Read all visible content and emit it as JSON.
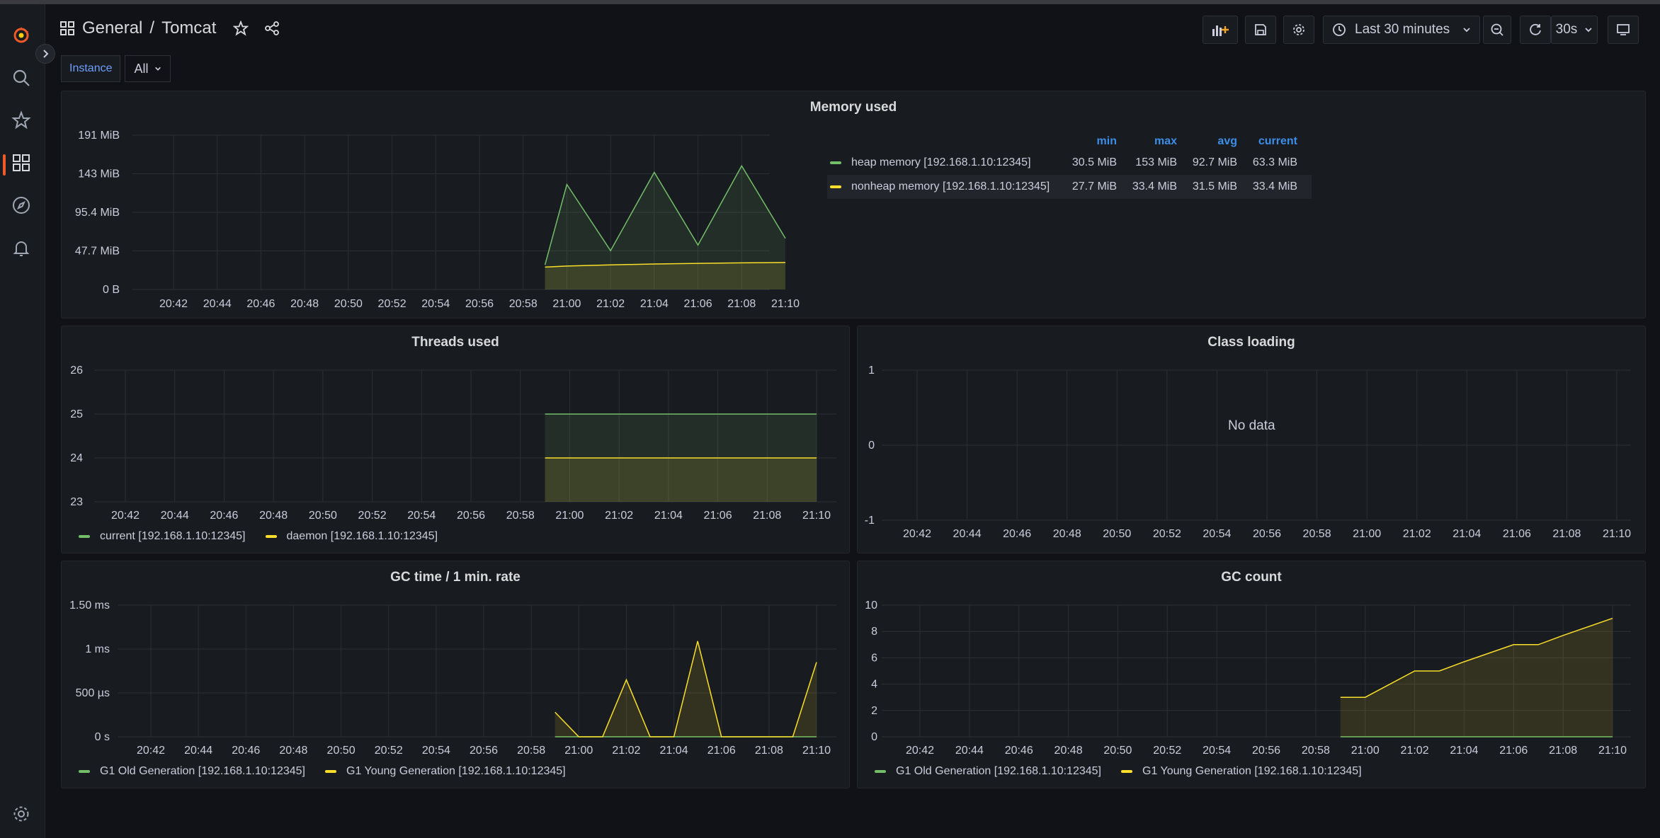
{
  "breadcrumb": {
    "folder": "General",
    "separator": "/",
    "dashboard": "Tomcat"
  },
  "toolbar": {
    "time_range": "Last 30 minutes",
    "refresh_interval": "30s"
  },
  "variables": {
    "instance_label": "Instance",
    "instance_value": "All"
  },
  "colors": {
    "green": "#73bf69",
    "yellow": "#fade2a",
    "brand": "#f05a28",
    "legend_header": "#3d8ee8"
  },
  "x_ticks": [
    "20:42",
    "20:44",
    "20:46",
    "20:48",
    "20:50",
    "20:52",
    "20:54",
    "20:56",
    "20:58",
    "21:00",
    "21:02",
    "21:04",
    "21:06",
    "21:08",
    "21:10"
  ],
  "panels": {
    "memory": {
      "title": "Memory used",
      "legend_headers": [
        "min",
        "max",
        "avg",
        "current"
      ],
      "legend_rows": [
        {
          "name": "heap memory [192.168.1.10:12345]",
          "min": "30.5 MiB",
          "max": "153 MiB",
          "avg": "92.7 MiB",
          "current": "63.3 MiB"
        },
        {
          "name": "nonheap memory [192.168.1.10:12345]",
          "min": "27.7 MiB",
          "max": "33.4 MiB",
          "avg": "31.5 MiB",
          "current": "33.4 MiB"
        }
      ]
    },
    "threads": {
      "title": "Threads used",
      "legend": [
        "current [192.168.1.10:12345]",
        "daemon [192.168.1.10:12345]"
      ]
    },
    "classes": {
      "title": "Class loading",
      "no_data": "No data"
    },
    "gctime": {
      "title": "GC time / 1 min. rate",
      "legend": [
        "G1 Old Generation [192.168.1.10:12345]",
        "G1 Young Generation [192.168.1.10:12345]"
      ]
    },
    "gccount": {
      "title": "GC count",
      "legend": [
        "G1 Old Generation [192.168.1.10:12345]",
        "G1 Young Generation [192.168.1.10:12345]"
      ]
    }
  },
  "chart_data": [
    {
      "id": "memory",
      "type": "area",
      "title": "Memory used",
      "x_unit": "minutes after 20:41",
      "y_ticks": [
        "0 B",
        "47.7 MiB",
        "95.4 MiB",
        "143 MiB",
        "191 MiB"
      ],
      "ylim": [
        0,
        191
      ],
      "xlim": [
        20.41,
        21.11
      ],
      "series": [
        {
          "name": "heap memory [192.168.1.10:12345]",
          "color": "#73bf69",
          "x": [
            "20:59",
            "21:00",
            "21:02",
            "21:04",
            "21:06",
            "21:08",
            "21:10"
          ],
          "values": [
            30.5,
            130,
            48,
            145,
            55,
            153,
            63.3
          ]
        },
        {
          "name": "nonheap memory [192.168.1.10:12345]",
          "color": "#fade2a",
          "x": [
            "20:59",
            "21:00",
            "21:02",
            "21:04",
            "21:06",
            "21:08",
            "21:10"
          ],
          "values": [
            27.7,
            29,
            30.5,
            31.5,
            32.3,
            33,
            33.4
          ]
        }
      ]
    },
    {
      "id": "threads",
      "type": "area",
      "title": "Threads used",
      "y_ticks": [
        "23",
        "24",
        "25",
        "26"
      ],
      "ylim": [
        23,
        26
      ],
      "series": [
        {
          "name": "current [192.168.1.10:12345]",
          "color": "#73bf69",
          "x": [
            "20:59",
            "21:10"
          ],
          "values": [
            25,
            25
          ]
        },
        {
          "name": "daemon [192.168.1.10:12345]",
          "color": "#fade2a",
          "x": [
            "20:59",
            "21:10"
          ],
          "values": [
            24,
            24
          ]
        }
      ]
    },
    {
      "id": "classes",
      "type": "line",
      "title": "Class loading",
      "y_ticks": [
        "-1",
        "0",
        "1"
      ],
      "ylim": [
        -1,
        1
      ],
      "series": []
    },
    {
      "id": "gctime",
      "type": "area",
      "title": "GC time / 1 min. rate",
      "y_ticks": [
        "0 s",
        "500 µs",
        "1 ms",
        "1.50 ms"
      ],
      "ylim": [
        0,
        1.5
      ],
      "series": [
        {
          "name": "G1 Old Generation [192.168.1.10:12345]",
          "color": "#73bf69",
          "x": [
            "20:59",
            "21:10"
          ],
          "values": [
            0,
            0
          ]
        },
        {
          "name": "G1 Young Generation [192.168.1.10:12345]",
          "color": "#fade2a",
          "x": [
            "20:59",
            "21:00",
            "21:01",
            "21:02",
            "21:03",
            "21:04",
            "21:05",
            "21:06",
            "21:07",
            "21:08",
            "21:09",
            "21:10"
          ],
          "values": [
            0.28,
            0,
            0,
            0.65,
            0,
            0,
            1.09,
            0,
            0,
            0,
            0,
            0.85
          ]
        }
      ]
    },
    {
      "id": "gccount",
      "type": "area",
      "title": "GC count",
      "y_ticks": [
        "0",
        "2",
        "4",
        "6",
        "8",
        "10"
      ],
      "ylim": [
        0,
        10
      ],
      "series": [
        {
          "name": "G1 Old Generation [192.168.1.10:12345]",
          "color": "#73bf69",
          "x": [
            "20:59",
            "21:10"
          ],
          "values": [
            0,
            0
          ]
        },
        {
          "name": "G1 Young Generation [192.168.1.10:12345]",
          "color": "#fade2a",
          "x": [
            "20:59",
            "21:00",
            "21:02",
            "21:03",
            "21:04",
            "21:06",
            "21:07",
            "21:08",
            "21:10"
          ],
          "values": [
            3,
            3,
            5,
            5,
            5.7,
            7,
            7,
            7.7,
            9
          ]
        }
      ]
    }
  ]
}
